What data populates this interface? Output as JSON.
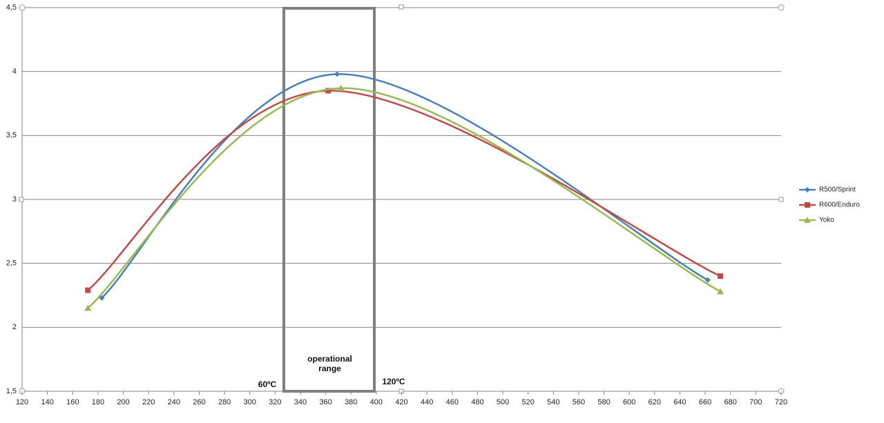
{
  "chart_data": {
    "type": "line",
    "series": [
      {
        "name": "R500/Sprint",
        "color": "#4a7ebb",
        "marker": "diamond",
        "x": [
          183,
          369,
          662
        ],
        "values": [
          2.23,
          3.98,
          2.37
        ]
      },
      {
        "name": "R600/Enduro",
        "color": "#be4b48",
        "marker": "square",
        "x": [
          172,
          362,
          672
        ],
        "values": [
          2.29,
          3.85,
          2.4
        ]
      },
      {
        "name": "Yoko",
        "color": "#98b954",
        "marker": "triangle",
        "x": [
          172,
          372,
          672
        ],
        "values": [
          2.15,
          3.87,
          2.28
        ]
      }
    ],
    "xlim": [
      120,
      720
    ],
    "xticks": [
      120,
      140,
      160,
      180,
      200,
      220,
      240,
      260,
      280,
      300,
      320,
      340,
      360,
      380,
      400,
      420,
      440,
      460,
      480,
      500,
      520,
      540,
      560,
      580,
      600,
      620,
      640,
      660,
      680,
      700,
      720
    ],
    "ylim": [
      1.5,
      4.5
    ],
    "yticks": [
      {
        "value": 1.5,
        "label": "1,5"
      },
      2,
      {
        "value": 2.5,
        "label": "2,5"
      },
      3,
      {
        "value": 3.5,
        "label": "3,5"
      },
      4,
      {
        "value": 4.5,
        "label": "4,5"
      }
    ],
    "grid": true,
    "smooth": true,
    "legend": "right",
    "annotations": [
      "60ºC",
      "120ºC",
      "operational range"
    ]
  }
}
